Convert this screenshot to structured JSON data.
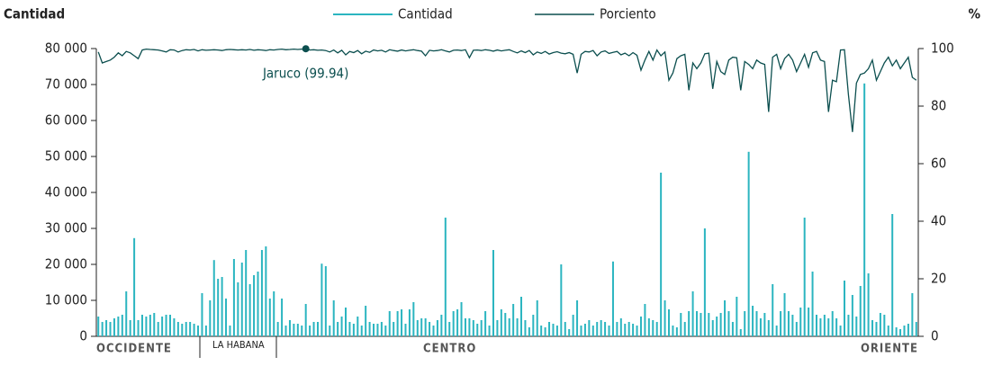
{
  "chart_data": {
    "type": "bar-line",
    "y_axis_label": "Cantidad",
    "y2_axis_label": "%",
    "annotation": "Jaruco (99.94)",
    "regions": [
      "OCCIDENTE",
      "LA HABANA",
      "CENTRO",
      "ORIENTE"
    ],
    "ylim": [
      0,
      80000
    ],
    "yticks": [
      0,
      {
        "value": 10000,
        "label": "10 000"
      },
      {
        "value": 20000,
        "label": "20 000"
      },
      {
        "value": 30000,
        "label": "30 000"
      },
      {
        "value": 40000,
        "label": "40 000"
      },
      {
        "value": 50000,
        "label": "50 000"
      },
      {
        "value": 60000,
        "label": "60 000"
      },
      {
        "value": 70000,
        "label": "70 000"
      },
      {
        "value": 80000,
        "label": "80 000"
      }
    ],
    "y2lim": [
      0,
      100
    ],
    "y2ticks": [
      0,
      20,
      40,
      60,
      80,
      100
    ],
    "series": [
      {
        "name": "Cantidad",
        "color": "#2bb5c0",
        "values": [
          5500,
          4000,
          4500,
          4000,
          5000,
          5500,
          6000,
          12500,
          4500,
          27300,
          4500,
          6000,
          5500,
          6000,
          6500,
          4000,
          5500,
          6000,
          6000,
          5000,
          4000,
          3500,
          4000,
          4000,
          3500,
          3000,
          12000,
          3000,
          10000,
          21200,
          16000,
          16500,
          10500,
          3000,
          21500,
          15000,
          20500,
          24000,
          14500,
          17000,
          18000,
          24000,
          25000,
          10500,
          12500,
          4000,
          10500,
          3000,
          4500,
          3500,
          3500,
          3000,
          9000,
          3000,
          4000,
          4000,
          20200,
          19500,
          3000,
          10000,
          4000,
          5500,
          8000,
          4000,
          3500,
          5500,
          3000,
          8500,
          4000,
          3500,
          3500,
          4000,
          3000,
          7000,
          4000,
          7000,
          7500,
          3500,
          7500,
          9500,
          4500,
          5000,
          5000,
          4000,
          3000,
          4500,
          6000,
          33000,
          4000,
          7000,
          7500,
          9500,
          5000,
          5000,
          4500,
          3500,
          4500,
          7000,
          3000,
          24000,
          4500,
          7500,
          6500,
          5000,
          9000,
          5000,
          11000,
          4500,
          2500,
          6000,
          10000,
          3000,
          2500,
          4000,
          3500,
          3000,
          20000,
          4000,
          2000,
          6000,
          10000,
          3000,
          3500,
          4500,
          3000,
          4000,
          4500,
          4000,
          3000,
          20800,
          4000,
          5000,
          3500,
          4000,
          3500,
          3000,
          5500,
          9000,
          5000,
          4500,
          4000,
          45500,
          10000,
          7500,
          3000,
          2500,
          6500,
          4000,
          7000,
          12500,
          7000,
          6500,
          30000,
          6500,
          4500,
          5500,
          6500,
          10000,
          7000,
          4000,
          11000,
          2000,
          7000,
          51300,
          8500,
          7000,
          5000,
          6500,
          4500,
          14500,
          3000,
          7000,
          12000,
          7000,
          6000,
          4000,
          8000,
          33000,
          8000,
          18000,
          6000,
          5000,
          6000,
          5000,
          7000,
          5000,
          3000,
          15500,
          6000,
          11500,
          5500,
          14000,
          70300,
          17500,
          4500,
          4000,
          6500,
          6000,
          3000,
          34000,
          2500,
          2000,
          3000,
          3500,
          12000,
          4000
        ]
      },
      {
        "name": "Porciento",
        "color": "#0c4f4f",
        "axis": "y2",
        "values": [
          98.8,
          95,
          95.5,
          96,
          97,
          98.5,
          97.5,
          99,
          98.5,
          97.5,
          96.5,
          99.5,
          99.8,
          99.7,
          99.6,
          99.5,
          99.2,
          98.8,
          99.6,
          99.5,
          98.8,
          99.3,
          99.6,
          99.5,
          99.7,
          99.2,
          99.6,
          99.4,
          99.5,
          99.6,
          99.5,
          99.3,
          99.6,
          99.7,
          99.6,
          99.5,
          99.6,
          99.5,
          99.7,
          99.4,
          99.6,
          99.5,
          99.3,
          99.6,
          99.5,
          99.7,
          99.8,
          99.6,
          99.7,
          99.8,
          99.7,
          99.8,
          99.94,
          99.5,
          99.6,
          99.4,
          99.5,
          99.3,
          98.8,
          99.5,
          98.5,
          99.4,
          97.8,
          99,
          98.6,
          99.3,
          98.2,
          99.1,
          98.7,
          99.5,
          99.2,
          99.4,
          98.8,
          99.6,
          99.3,
          99.1,
          99.5,
          99.2,
          99.4,
          99.6,
          99.3,
          99.1,
          97.5,
          99.4,
          99.2,
          99.3,
          99.6,
          99.2,
          98.8,
          99.4,
          99.5,
          99.3,
          99.6,
          96.8,
          99.4,
          99.5,
          99.3,
          99.6,
          99.4,
          99.1,
          99.5,
          99.2,
          99.4,
          99.6,
          99,
          98.5,
          99.2,
          98.6,
          99.3,
          97.8,
          98.8,
          98.3,
          99,
          98.1,
          98.6,
          98.9,
          98.4,
          98.2,
          98.6,
          98,
          91.5,
          98,
          99,
          98.8,
          99.3,
          97.5,
          98.8,
          99.2,
          98.3,
          98.7,
          99,
          97.8,
          98.4,
          97.5,
          98.6,
          97.7,
          92.5,
          96,
          99,
          96,
          99.5,
          97.5,
          98.8,
          89,
          91.5,
          96.5,
          97.5,
          98,
          85.5,
          95,
          93,
          95,
          98.2,
          98.4,
          86,
          95.5,
          92,
          91,
          96,
          97,
          96.8,
          85.5,
          95.5,
          94.5,
          93,
          96,
          95,
          94.5,
          78,
          97,
          98,
          93,
          96.5,
          98,
          96,
          92,
          95,
          98,
          93.5,
          98.5,
          99,
          96,
          95.5,
          78,
          89,
          88.5,
          99.5,
          99.6,
          84,
          71,
          88,
          91,
          91.5,
          93,
          96,
          89,
          92,
          95,
          97,
          94,
          96,
          93,
          95,
          97,
          90,
          89
        ]
      }
    ]
  }
}
